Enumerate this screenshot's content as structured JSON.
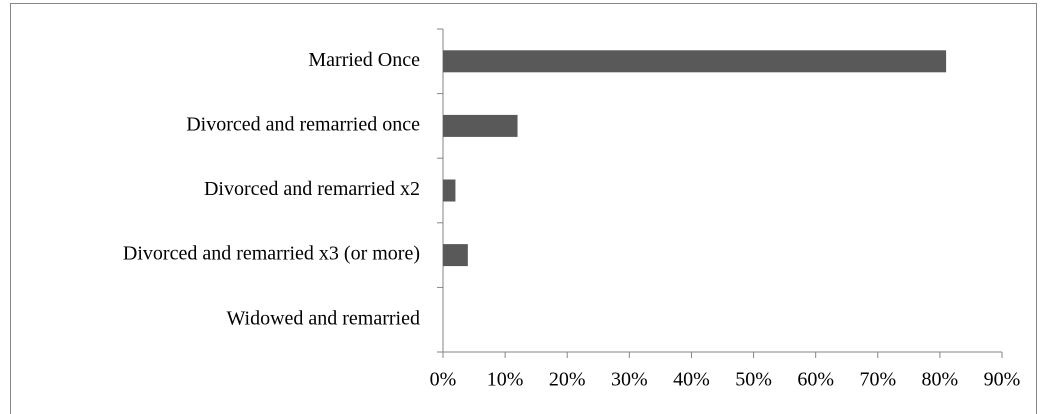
{
  "chart_data": {
    "type": "bar",
    "orientation": "horizontal",
    "categories": [
      "Married Once",
      "Divorced and remarried once",
      "Divorced and remarried x2",
      "Divorced and remarried x3 (or more)",
      "Widowed and remarried"
    ],
    "values": [
      81,
      12,
      2,
      4,
      0
    ],
    "color": "#595959",
    "xlim": [
      0,
      90
    ],
    "xticks": [
      {
        "value": 0,
        "label": "0%"
      },
      {
        "value": 10,
        "label": "10%"
      },
      {
        "value": 20,
        "label": "20%"
      },
      {
        "value": 30,
        "label": "30%"
      },
      {
        "value": 40,
        "label": "40%"
      },
      {
        "value": 50,
        "label": "50%"
      },
      {
        "value": 60,
        "label": "60%"
      },
      {
        "value": 70,
        "label": "70%"
      },
      {
        "value": 80,
        "label": "80%"
      },
      {
        "value": 90,
        "label": "90%"
      }
    ],
    "grid": false
  }
}
